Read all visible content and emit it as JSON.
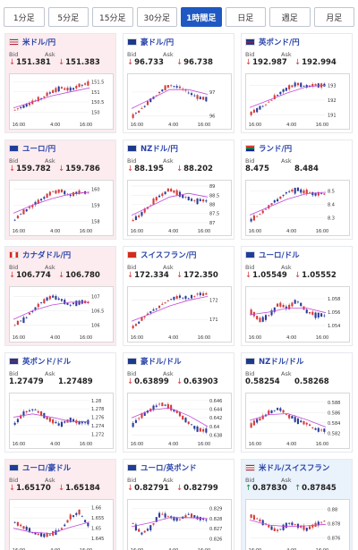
{
  "tabs": [
    {
      "label": "1分足",
      "active": false
    },
    {
      "label": "5分足",
      "active": false
    },
    {
      "label": "15分足",
      "active": false
    },
    {
      "label": "30分足",
      "active": false
    },
    {
      "label": "1時間足",
      "active": true
    },
    {
      "label": "日足",
      "active": false
    },
    {
      "label": "週足",
      "active": false
    },
    {
      "label": "月足",
      "active": false
    }
  ],
  "colors": {
    "accent": "#1f58c2",
    "card_pink": "#fcecef",
    "card_blue": "#eaf2fb",
    "candle_up": "#d53a3a",
    "candle_down": "#2a3c9a",
    "moving_average": "#c24ad6",
    "price_down": "#d53a3a",
    "price_up": "#1b8a3a"
  },
  "labels": {
    "bid": "Bid",
    "ask": "Ask"
  },
  "pairs": [
    {
      "name": "米ドル/円",
      "flag": "us-flag",
      "bg": "pink",
      "direction": "down",
      "bid": "151.381",
      "ask": "151.383",
      "chart": {
        "xticks": [
          "16:00",
          "4:00",
          "16:00"
        ],
        "yticks": [
          "151.5",
          "151",
          "150.5",
          "150"
        ],
        "ylim": [
          149.7,
          151.7
        ],
        "trend": [
          150.1,
          150.3,
          150.5,
          150.7,
          151.0,
          151.2,
          151.1,
          151.3,
          151.4
        ],
        "ma": [
          150.2,
          150.5,
          150.8,
          151.0,
          151.2
        ]
      }
    },
    {
      "name": "豪ドル/円",
      "flag": "au-flag",
      "bg": "white",
      "direction": "down",
      "bid": "96.733",
      "ask": "96.738",
      "chart": {
        "xticks": [
          "16:00",
          "4:00",
          "16:00"
        ],
        "yticks": [
          "97",
          "96"
        ],
        "ylim": [
          95.9,
          97.6
        ],
        "trend": [
          96.0,
          96.3,
          96.7,
          97.0,
          97.3,
          97.2,
          97.0,
          96.8,
          96.7
        ],
        "ma": [
          96.3,
          96.7,
          97.1,
          97.1,
          96.9
        ]
      }
    },
    {
      "name": "英ポンド/円",
      "flag": "gb-flag",
      "bg": "white",
      "direction": "down",
      "bid": "192.987",
      "ask": "192.994",
      "chart": {
        "xticks": [
          "16:00",
          "4:00",
          "16:00"
        ],
        "yticks": [
          "193",
          "192",
          "191"
        ],
        "ylim": [
          190.8,
          193.5
        ],
        "trend": [
          191.1,
          191.5,
          191.9,
          192.4,
          192.8,
          193.1,
          192.9,
          193.0,
          193.0
        ],
        "ma": [
          191.5,
          192.0,
          192.5,
          192.9,
          193.0
        ]
      }
    },
    {
      "name": "ユーロ/円",
      "flag": "eu-flag",
      "bg": "pink",
      "direction": "down",
      "bid": "159.782",
      "ask": "159.786",
      "chart": {
        "xticks": [
          "16:00",
          "4:00",
          "16:00"
        ],
        "yticks": [
          "160",
          "159",
          "158"
        ],
        "ylim": [
          157.8,
          160.3
        ],
        "trend": [
          158.1,
          158.6,
          159.0,
          159.4,
          159.8,
          159.9,
          159.6,
          159.8,
          159.8
        ],
        "ma": [
          158.5,
          159.0,
          159.4,
          159.7,
          159.8
        ]
      }
    },
    {
      "name": "NZドル/円",
      "flag": "nz-flag",
      "bg": "white",
      "direction": "down",
      "bid": "88.195",
      "ask": "88.202",
      "chart": {
        "xticks": [
          "16:00",
          "4:00",
          "16:00"
        ],
        "yticks": [
          "89",
          "88.5",
          "88",
          "87.5",
          "87"
        ],
        "ylim": [
          86.9,
          89.1
        ],
        "trend": [
          87.1,
          87.5,
          88.0,
          88.5,
          88.8,
          88.6,
          88.3,
          88.2,
          88.2
        ],
        "ma": [
          87.4,
          87.9,
          88.4,
          88.6,
          88.4
        ]
      }
    },
    {
      "name": "ランド/円",
      "flag": "za-flag",
      "bg": "white",
      "direction": "none",
      "bid": "8.475",
      "ask": "8.484",
      "chart": {
        "xticks": [
          "16:00",
          "4:00",
          "16:00"
        ],
        "yticks": [
          "8.5",
          "8.4",
          "8.3"
        ],
        "ylim": [
          8.25,
          8.55
        ],
        "trend": [
          8.28,
          8.33,
          8.39,
          8.44,
          8.49,
          8.51,
          8.49,
          8.48,
          8.48
        ],
        "ma": [
          8.32,
          8.38,
          8.44,
          8.48,
          8.49
        ]
      }
    },
    {
      "name": "カナダドル/円",
      "flag": "ca-flag",
      "bg": "pink",
      "direction": "down",
      "bid": "106.774",
      "ask": "106.780",
      "chart": {
        "xticks": [
          "16:00",
          "4:00",
          "16:00"
        ],
        "yticks": [
          "107",
          "106.5",
          "106"
        ],
        "ylim": [
          105.8,
          107.2
        ],
        "trend": [
          106.0,
          106.2,
          106.5,
          106.8,
          107.0,
          106.9,
          106.7,
          106.8,
          106.8
        ],
        "ma": [
          106.2,
          106.5,
          106.7,
          106.8,
          106.8
        ]
      }
    },
    {
      "name": "スイスフラン/円",
      "flag": "ch-flag",
      "bg": "white",
      "direction": "down",
      "bid": "172.334",
      "ask": "172.350",
      "chart": {
        "xticks": [
          "16:00",
          "4:00",
          "16:00"
        ],
        "yticks": [
          "172",
          "171"
        ],
        "ylim": [
          170.4,
          172.5
        ],
        "trend": [
          170.6,
          171.0,
          171.4,
          171.7,
          172.0,
          172.2,
          172.1,
          172.3,
          172.3
        ],
        "ma": [
          170.9,
          171.3,
          171.7,
          172.0,
          172.2
        ]
      }
    },
    {
      "name": "ユーロ/ドル",
      "flag": "eu-flag",
      "bg": "white",
      "direction": "down",
      "bid": "1.05549",
      "ask": "1.05552",
      "chart": {
        "xticks": [
          "16:00",
          "4:00",
          "16:00"
        ],
        "yticks": [
          "1.058",
          "1.056",
          "1.054"
        ],
        "ylim": [
          1.0532,
          1.0592
        ],
        "trend": [
          1.056,
          1.0548,
          1.0555,
          1.0572,
          1.0565,
          1.0578,
          1.0562,
          1.0556,
          1.0555
        ],
        "ma": [
          1.0556,
          1.056,
          1.0566,
          1.0566,
          1.0559
        ]
      }
    },
    {
      "name": "英ポンド/ドル",
      "flag": "gb-flag",
      "bg": "white",
      "direction": "none",
      "bid": "1.27479",
      "ask": "1.27489",
      "chart": {
        "xticks": [
          "16:00",
          "4:00",
          "16:00"
        ],
        "yticks": [
          "1.28",
          "1.278",
          "1.276",
          "1.274",
          "1.272"
        ],
        "ylim": [
          1.2712,
          1.2808
        ],
        "trend": [
          1.2745,
          1.277,
          1.278,
          1.2768,
          1.275,
          1.2742,
          1.2755,
          1.2748,
          1.2748
        ],
        "ma": [
          1.276,
          1.2768,
          1.276,
          1.275,
          1.2749
        ]
      }
    },
    {
      "name": "豪ドル/ドル",
      "flag": "au-flag",
      "bg": "white",
      "direction": "down",
      "bid": "0.63899",
      "ask": "0.63903",
      "chart": {
        "xticks": [
          "16:00",
          "4:00",
          "16:00"
        ],
        "yticks": [
          "0.646",
          "0.644",
          "0.642",
          "0.64",
          "0.638"
        ],
        "ylim": [
          0.6375,
          0.6468
        ],
        "trend": [
          0.6405,
          0.6425,
          0.644,
          0.6452,
          0.6445,
          0.643,
          0.641,
          0.6395,
          0.639
        ],
        "ma": [
          0.642,
          0.6438,
          0.6443,
          0.6425,
          0.64
        ]
      }
    },
    {
      "name": "NZドル/ドル",
      "flag": "nz-flag",
      "bg": "white",
      "direction": "none",
      "bid": "0.58254",
      "ask": "0.58268",
      "chart": {
        "xticks": [
          "16:00",
          "4:00",
          "16:00"
        ],
        "yticks": [
          "0.588",
          "0.586",
          "0.584",
          "0.582"
        ],
        "ylim": [
          0.5812,
          0.589
        ],
        "trend": [
          0.5835,
          0.5848,
          0.586,
          0.5868,
          0.5855,
          0.5845,
          0.584,
          0.5828,
          0.5826
        ],
        "ma": [
          0.5845,
          0.5856,
          0.5858,
          0.5846,
          0.5832
        ]
      }
    },
    {
      "name": "ユーロ/豪ドル",
      "flag": "eu-flag",
      "bg": "pink",
      "direction": "down",
      "bid": "1.65170",
      "ask": "1.65184",
      "chart": {
        "xticks": [
          "16:00",
          "4:00",
          "16:00"
        ],
        "yticks": [
          "1.66",
          "1.655",
          "1.65",
          "1.645"
        ],
        "ylim": [
          1.6425,
          1.662
        ],
        "trend": [
          1.653,
          1.6505,
          1.648,
          1.6465,
          1.647,
          1.649,
          1.655,
          1.658,
          1.6517
        ],
        "ma": [
          1.65,
          1.648,
          1.6475,
          1.6505,
          1.653
        ]
      }
    },
    {
      "name": "ユーロ/英ポンド",
      "flag": "eu-flag",
      "bg": "white",
      "direction": "down",
      "bid": "0.82791",
      "ask": "0.82799",
      "chart": {
        "xticks": [
          "16:00",
          "4:00",
          "16:00"
        ],
        "yticks": [
          "0.829",
          "0.828",
          "0.827",
          "0.826"
        ],
        "ylim": [
          0.8255,
          0.8295
        ],
        "trend": [
          0.8275,
          0.8265,
          0.8272,
          0.8285,
          0.8282,
          0.8278,
          0.8284,
          0.8281,
          0.8279
        ],
        "ma": [
          0.8272,
          0.8276,
          0.8281,
          0.8281,
          0.828
        ]
      }
    },
    {
      "name": "米ドル/スイスフラン",
      "flag": "us-flag",
      "bg": "blue",
      "direction": "up",
      "bid": "0.87830",
      "ask": "0.87845",
      "chart": {
        "xticks": [
          "16:00",
          "4:00",
          "16:00"
        ],
        "yticks": [
          "0.88",
          "0.878",
          "0.876"
        ],
        "ylim": [
          0.8752,
          0.8808
        ],
        "trend": [
          0.879,
          0.8785,
          0.8775,
          0.877,
          0.878,
          0.8778,
          0.8772,
          0.8778,
          0.8783
        ],
        "ma": [
          0.8785,
          0.8778,
          0.8776,
          0.8777,
          0.8779
        ]
      }
    }
  ]
}
